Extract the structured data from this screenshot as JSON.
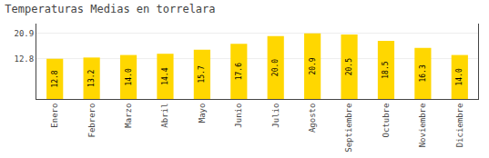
{
  "chart_data": {
    "type": "bar",
    "title": "Temperaturas Medias en torrelara",
    "categories": [
      "Enero",
      "Febrero",
      "Marzo",
      "Abril",
      "Mayo",
      "Junio",
      "Julio",
      "Agosto",
      "Septiembre",
      "Octubre",
      "Noviembre",
      "Diciembre"
    ],
    "values": [
      12.8,
      13.2,
      14.0,
      14.4,
      15.7,
      17.6,
      20.0,
      20.9,
      20.5,
      18.5,
      16.3,
      14.0
    ],
    "value_labels": [
      "12.8",
      "13.2",
      "14.0",
      "14.4",
      "15.7",
      "17.6",
      "20.0",
      "20.9",
      "20.5",
      "18.5",
      "16.3",
      "14.0"
    ],
    "data_labels": true,
    "color": "#FFD700",
    "ylim": [
      0,
      24.0
    ],
    "yticks": [
      12.8,
      20.9
    ],
    "grid": true
  }
}
